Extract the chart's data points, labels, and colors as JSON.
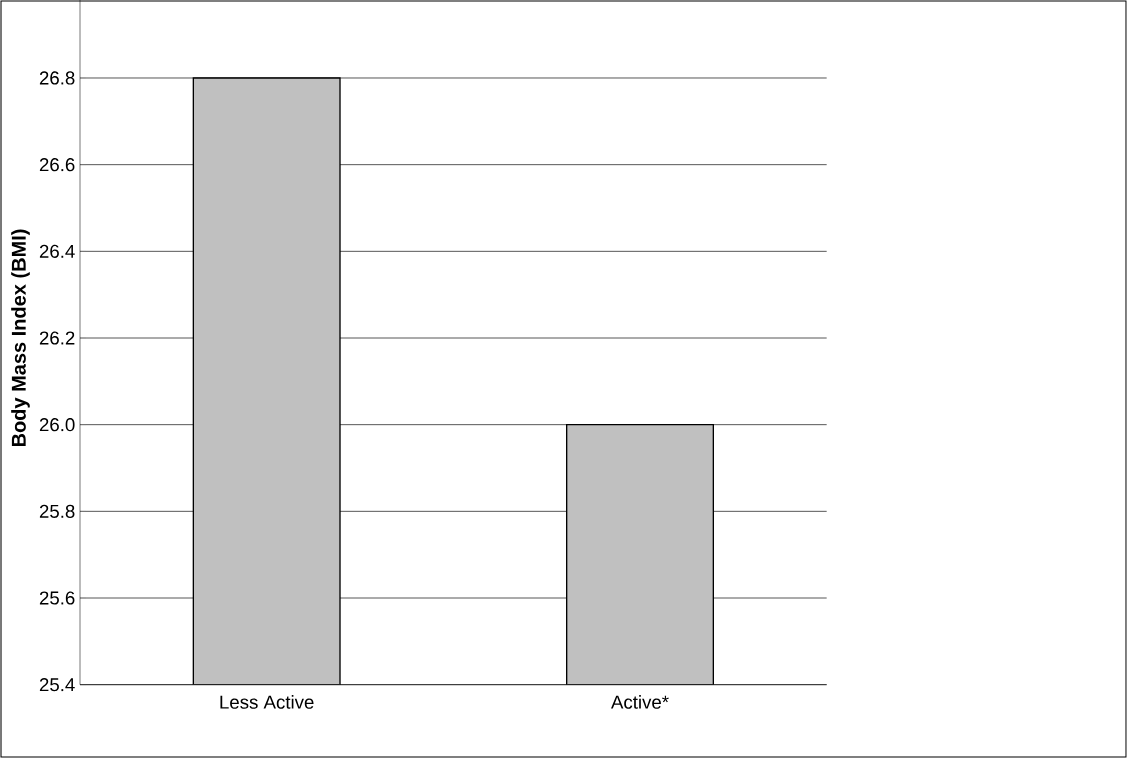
{
  "chart_data": {
    "type": "bar",
    "ylabel": "Body Mass Index (BMI)",
    "categories": [
      "Less Active",
      "Active*"
    ],
    "values": [
      26.8,
      26.0
    ],
    "color": "#c0c0c0",
    "ylim": [
      25.4,
      27.0
    ],
    "yticks": [
      25.4,
      25.6,
      25.8,
      {
        "value": 26.0,
        "label": "26.0"
      },
      26.2,
      26.4,
      26.6,
      26.8
    ],
    "grid": "y"
  }
}
